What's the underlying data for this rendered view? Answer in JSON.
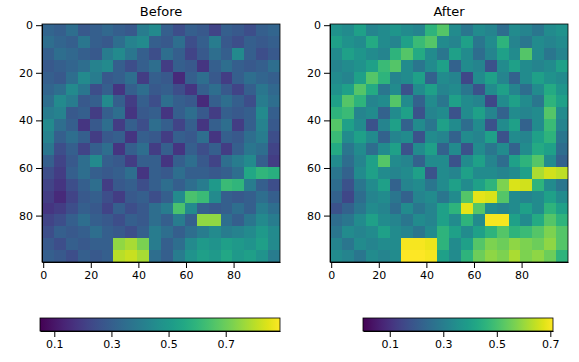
{
  "chart_data": [
    {
      "type": "heatmap",
      "title": "Before",
      "color": "viridis",
      "xlim": [
        -0.5,
        99.5
      ],
      "ylim": [
        99.5,
        -0.5
      ],
      "xticks": [
        0,
        20,
        40,
        60,
        80
      ],
      "yticks": [
        0,
        20,
        40,
        60,
        80
      ],
      "colorbar_range": [
        0.05,
        0.89
      ],
      "colorbar_ticks": [
        0.1,
        0.3,
        0.5,
        0.7
      ],
      "cells": [
        [
          0.32,
          0.3,
          0.35,
          0.28,
          0.3,
          0.33,
          0.3,
          0.28,
          0.4,
          0.45,
          0.3,
          0.25,
          0.3,
          0.28,
          0.22,
          0.3,
          0.28,
          0.25,
          0.3,
          0.32
        ],
        [
          0.35,
          0.32,
          0.3,
          0.38,
          0.3,
          0.28,
          0.35,
          0.42,
          0.45,
          0.3,
          0.28,
          0.35,
          0.25,
          0.3,
          0.4,
          0.28,
          0.25,
          0.3,
          0.28,
          0.3
        ],
        [
          0.3,
          0.35,
          0.33,
          0.3,
          0.28,
          0.4,
          0.45,
          0.38,
          0.3,
          0.25,
          0.35,
          0.3,
          0.22,
          0.28,
          0.35,
          0.3,
          0.45,
          0.3,
          0.25,
          0.28
        ],
        [
          0.28,
          0.3,
          0.32,
          0.35,
          0.42,
          0.45,
          0.3,
          0.25,
          0.3,
          0.35,
          0.2,
          0.3,
          0.28,
          0.18,
          0.3,
          0.35,
          0.3,
          0.28,
          0.3,
          0.35
        ],
        [
          0.3,
          0.28,
          0.35,
          0.45,
          0.4,
          0.28,
          0.3,
          0.35,
          0.2,
          0.3,
          0.28,
          0.15,
          0.3,
          0.35,
          0.28,
          0.2,
          0.3,
          0.35,
          0.32,
          0.3
        ],
        [
          0.32,
          0.35,
          0.45,
          0.38,
          0.25,
          0.3,
          0.18,
          0.3,
          0.35,
          0.28,
          0.3,
          0.25,
          0.18,
          0.3,
          0.35,
          0.28,
          0.22,
          0.3,
          0.38,
          0.33
        ],
        [
          0.35,
          0.45,
          0.4,
          0.28,
          0.3,
          0.45,
          0.3,
          0.2,
          0.3,
          0.25,
          0.35,
          0.3,
          0.28,
          0.15,
          0.3,
          0.35,
          0.3,
          0.25,
          0.4,
          0.35
        ],
        [
          0.4,
          0.42,
          0.28,
          0.3,
          0.2,
          0.3,
          0.35,
          0.18,
          0.28,
          0.3,
          0.18,
          0.3,
          0.35,
          0.28,
          0.2,
          0.3,
          0.28,
          0.3,
          0.45,
          0.3
        ],
        [
          0.45,
          0.35,
          0.3,
          0.18,
          0.28,
          0.35,
          0.2,
          0.3,
          0.25,
          0.35,
          0.3,
          0.22,
          0.3,
          0.18,
          0.3,
          0.35,
          0.2,
          0.3,
          0.42,
          0.28
        ],
        [
          0.42,
          0.3,
          0.35,
          0.3,
          0.2,
          0.28,
          0.3,
          0.18,
          0.3,
          0.28,
          0.2,
          0.3,
          0.28,
          0.35,
          0.18,
          0.3,
          0.28,
          0.35,
          0.4,
          0.25
        ],
        [
          0.38,
          0.25,
          0.3,
          0.22,
          0.3,
          0.35,
          0.18,
          0.3,
          0.35,
          0.2,
          0.3,
          0.18,
          0.3,
          0.25,
          0.3,
          0.2,
          0.3,
          0.38,
          0.35,
          0.22
        ],
        [
          0.3,
          0.22,
          0.28,
          0.35,
          0.45,
          0.3,
          0.28,
          0.2,
          0.3,
          0.3,
          0.18,
          0.3,
          0.35,
          0.28,
          0.22,
          0.35,
          0.4,
          0.45,
          0.3,
          0.2
        ],
        [
          0.25,
          0.2,
          0.3,
          0.35,
          0.3,
          0.28,
          0.3,
          0.35,
          0.18,
          0.3,
          0.28,
          0.35,
          0.3,
          0.3,
          0.28,
          0.3,
          0.35,
          0.55,
          0.6,
          0.58
        ],
        [
          0.22,
          0.18,
          0.25,
          0.3,
          0.35,
          0.2,
          0.28,
          0.3,
          0.25,
          0.3,
          0.35,
          0.3,
          0.35,
          0.4,
          0.5,
          0.62,
          0.6,
          0.4,
          0.3,
          0.25
        ],
        [
          0.2,
          0.15,
          0.22,
          0.28,
          0.3,
          0.25,
          0.2,
          0.28,
          0.3,
          0.25,
          0.3,
          0.45,
          0.65,
          0.62,
          0.45,
          0.3,
          0.28,
          0.3,
          0.35,
          0.3
        ],
        [
          0.18,
          0.2,
          0.25,
          0.3,
          0.28,
          0.22,
          0.3,
          0.25,
          0.28,
          0.35,
          0.4,
          0.65,
          0.45,
          0.3,
          0.28,
          0.3,
          0.35,
          0.3,
          0.4,
          0.35
        ],
        [
          0.22,
          0.25,
          0.3,
          0.35,
          0.3,
          0.28,
          0.25,
          0.3,
          0.28,
          0.35,
          0.3,
          0.4,
          0.3,
          0.75,
          0.75,
          0.35,
          0.3,
          0.38,
          0.45,
          0.4
        ],
        [
          0.25,
          0.3,
          0.28,
          0.3,
          0.35,
          0.3,
          0.28,
          0.25,
          0.3,
          0.4,
          0.35,
          0.3,
          0.35,
          0.4,
          0.45,
          0.4,
          0.42,
          0.45,
          0.5,
          0.45
        ],
        [
          0.28,
          0.25,
          0.3,
          0.28,
          0.3,
          0.3,
          0.75,
          0.78,
          0.72,
          0.4,
          0.3,
          0.35,
          0.45,
          0.5,
          0.48,
          0.52,
          0.5,
          0.48,
          0.52,
          0.45
        ],
        [
          0.3,
          0.28,
          0.25,
          0.3,
          0.28,
          0.3,
          0.8,
          0.82,
          0.78,
          0.35,
          0.3,
          0.4,
          0.48,
          0.52,
          0.5,
          0.55,
          0.5,
          0.52,
          0.48,
          0.4
        ]
      ]
    },
    {
      "type": "heatmap",
      "title": "After",
      "color": "viridis",
      "xlim": [
        -0.5,
        99.5
      ],
      "ylim": [
        99.5,
        -0.5
      ],
      "xticks": [
        0,
        20,
        40,
        60,
        80
      ],
      "yticks": [
        0,
        20,
        40,
        60,
        80
      ],
      "colorbar_range": [
        0.0,
        0.71
      ],
      "colorbar_ticks": [
        0.1,
        0.3,
        0.5,
        0.7
      ],
      "cells": [
        [
          0.36,
          0.34,
          0.4,
          0.32,
          0.34,
          0.37,
          0.34,
          0.32,
          0.46,
          0.52,
          0.34,
          0.28,
          0.34,
          0.32,
          0.25,
          0.34,
          0.32,
          0.28,
          0.34,
          0.36
        ],
        [
          0.4,
          0.36,
          0.34,
          0.43,
          0.34,
          0.32,
          0.4,
          0.48,
          0.52,
          0.34,
          0.32,
          0.4,
          0.28,
          0.34,
          0.46,
          0.32,
          0.28,
          0.34,
          0.32,
          0.34
        ],
        [
          0.34,
          0.4,
          0.37,
          0.34,
          0.32,
          0.46,
          0.52,
          0.43,
          0.34,
          0.28,
          0.4,
          0.34,
          0.25,
          0.32,
          0.4,
          0.34,
          0.52,
          0.34,
          0.28,
          0.32
        ],
        [
          0.32,
          0.34,
          0.36,
          0.4,
          0.48,
          0.52,
          0.34,
          0.28,
          0.34,
          0.4,
          0.22,
          0.34,
          0.32,
          0.18,
          0.34,
          0.4,
          0.34,
          0.32,
          0.34,
          0.4
        ],
        [
          0.34,
          0.32,
          0.4,
          0.52,
          0.46,
          0.32,
          0.34,
          0.4,
          0.22,
          0.34,
          0.32,
          0.15,
          0.34,
          0.4,
          0.32,
          0.22,
          0.34,
          0.4,
          0.36,
          0.34
        ],
        [
          0.36,
          0.4,
          0.52,
          0.43,
          0.28,
          0.34,
          0.18,
          0.34,
          0.4,
          0.32,
          0.34,
          0.28,
          0.18,
          0.34,
          0.4,
          0.32,
          0.25,
          0.34,
          0.43,
          0.37
        ],
        [
          0.4,
          0.52,
          0.46,
          0.32,
          0.34,
          0.52,
          0.34,
          0.22,
          0.34,
          0.28,
          0.4,
          0.34,
          0.32,
          0.15,
          0.34,
          0.4,
          0.34,
          0.28,
          0.46,
          0.4
        ],
        [
          0.46,
          0.48,
          0.32,
          0.34,
          0.22,
          0.34,
          0.4,
          0.18,
          0.32,
          0.34,
          0.18,
          0.34,
          0.4,
          0.32,
          0.22,
          0.34,
          0.32,
          0.34,
          0.52,
          0.34
        ],
        [
          0.52,
          0.4,
          0.34,
          0.18,
          0.32,
          0.4,
          0.22,
          0.34,
          0.28,
          0.4,
          0.34,
          0.25,
          0.34,
          0.18,
          0.34,
          0.4,
          0.22,
          0.34,
          0.48,
          0.32
        ],
        [
          0.48,
          0.34,
          0.4,
          0.34,
          0.22,
          0.32,
          0.34,
          0.18,
          0.34,
          0.32,
          0.22,
          0.34,
          0.32,
          0.4,
          0.18,
          0.34,
          0.32,
          0.4,
          0.46,
          0.28
        ],
        [
          0.43,
          0.28,
          0.34,
          0.25,
          0.34,
          0.4,
          0.18,
          0.34,
          0.4,
          0.22,
          0.34,
          0.18,
          0.34,
          0.28,
          0.34,
          0.22,
          0.34,
          0.43,
          0.4,
          0.25
        ],
        [
          0.34,
          0.25,
          0.32,
          0.4,
          0.52,
          0.34,
          0.32,
          0.22,
          0.34,
          0.34,
          0.18,
          0.34,
          0.4,
          0.32,
          0.25,
          0.4,
          0.46,
          0.52,
          0.34,
          0.22
        ],
        [
          0.28,
          0.22,
          0.34,
          0.4,
          0.34,
          0.32,
          0.34,
          0.4,
          0.18,
          0.34,
          0.32,
          0.4,
          0.34,
          0.34,
          0.32,
          0.34,
          0.4,
          0.62,
          0.66,
          0.64
        ],
        [
          0.25,
          0.18,
          0.28,
          0.34,
          0.4,
          0.22,
          0.32,
          0.34,
          0.28,
          0.34,
          0.4,
          0.34,
          0.4,
          0.46,
          0.57,
          0.67,
          0.66,
          0.46,
          0.34,
          0.28
        ],
        [
          0.22,
          0.15,
          0.25,
          0.32,
          0.34,
          0.28,
          0.22,
          0.32,
          0.34,
          0.28,
          0.34,
          0.52,
          0.68,
          0.67,
          0.52,
          0.34,
          0.32,
          0.34,
          0.4,
          0.34
        ],
        [
          0.18,
          0.22,
          0.28,
          0.34,
          0.32,
          0.25,
          0.34,
          0.28,
          0.32,
          0.4,
          0.46,
          0.68,
          0.52,
          0.34,
          0.32,
          0.34,
          0.4,
          0.34,
          0.46,
          0.4
        ],
        [
          0.25,
          0.28,
          0.34,
          0.4,
          0.34,
          0.32,
          0.28,
          0.34,
          0.32,
          0.4,
          0.34,
          0.46,
          0.34,
          0.7,
          0.7,
          0.4,
          0.34,
          0.43,
          0.52,
          0.46
        ],
        [
          0.28,
          0.34,
          0.32,
          0.34,
          0.4,
          0.34,
          0.32,
          0.28,
          0.34,
          0.46,
          0.4,
          0.34,
          0.4,
          0.46,
          0.52,
          0.46,
          0.48,
          0.52,
          0.57,
          0.52
        ],
        [
          0.32,
          0.28,
          0.34,
          0.32,
          0.34,
          0.34,
          0.7,
          0.7,
          0.69,
          0.46,
          0.34,
          0.4,
          0.52,
          0.57,
          0.55,
          0.59,
          0.57,
          0.55,
          0.59,
          0.52
        ],
        [
          0.34,
          0.32,
          0.28,
          0.34,
          0.32,
          0.34,
          0.71,
          0.71,
          0.7,
          0.4,
          0.34,
          0.46,
          0.55,
          0.59,
          0.57,
          0.62,
          0.57,
          0.59,
          0.55,
          0.46
        ]
      ]
    }
  ]
}
